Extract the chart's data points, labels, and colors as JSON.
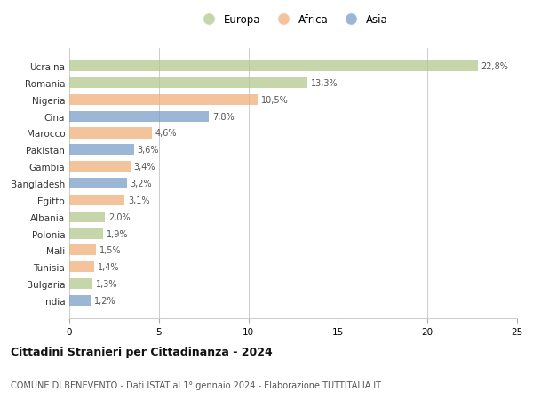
{
  "categories": [
    "Ucraina",
    "Romania",
    "Nigeria",
    "Cina",
    "Marocco",
    "Pakistan",
    "Gambia",
    "Bangladesh",
    "Egitto",
    "Albania",
    "Polonia",
    "Mali",
    "Tunisia",
    "Bulgaria",
    "India"
  ],
  "values": [
    22.8,
    13.3,
    10.5,
    7.8,
    4.6,
    3.6,
    3.4,
    3.2,
    3.1,
    2.0,
    1.9,
    1.5,
    1.4,
    1.3,
    1.2
  ],
  "labels": [
    "22,8%",
    "13,3%",
    "10,5%",
    "7,8%",
    "4,6%",
    "3,6%",
    "3,4%",
    "3,2%",
    "3,1%",
    "2,0%",
    "1,9%",
    "1,5%",
    "1,4%",
    "1,3%",
    "1,2%"
  ],
  "colors": [
    "#b5c98e",
    "#b5c98e",
    "#f0b07a",
    "#7b9fc7",
    "#f0b07a",
    "#7b9fc7",
    "#f0b07a",
    "#7b9fc7",
    "#f0b07a",
    "#b5c98e",
    "#b5c98e",
    "#f0b07a",
    "#f0b07a",
    "#b5c98e",
    "#7b9fc7"
  ],
  "legend_labels": [
    "Europa",
    "Africa",
    "Asia"
  ],
  "legend_colors": [
    "#b5c98e",
    "#f0b07a",
    "#7b9fc7"
  ],
  "title": "Cittadini Stranieri per Cittadinanza - 2024",
  "subtitle": "COMUNE DI BENEVENTO - Dati ISTAT al 1° gennaio 2024 - Elaborazione TUTTITALIA.IT",
  "xlim": [
    0,
    25
  ],
  "xticks": [
    0,
    5,
    10,
    15,
    20,
    25
  ],
  "bg_color": "#ffffff",
  "grid_color": "#cccccc",
  "bar_alpha": 0.75
}
